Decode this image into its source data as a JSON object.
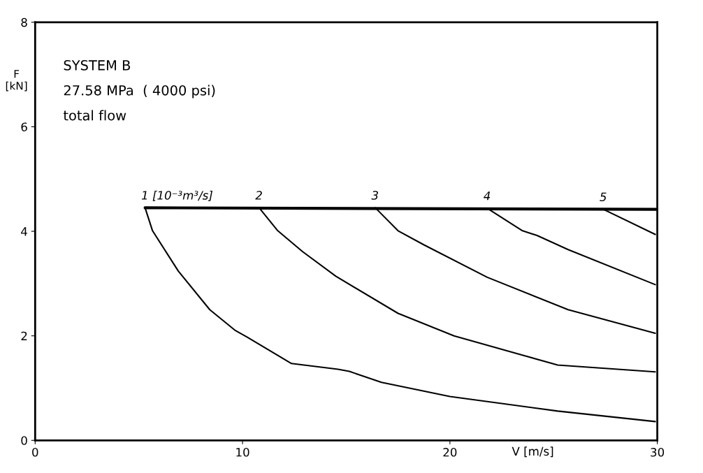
{
  "chart_data": {
    "type": "line",
    "xlabel": "V [m/s]",
    "ylabel": "F\n[kN]",
    "annotations": [
      "SYSTEM B",
      "27.58 MPa  ( 4000 psi)",
      "total flow"
    ],
    "xlim": [
      0,
      30
    ],
    "ylim": [
      0,
      8
    ],
    "xticks": [
      0,
      10,
      20,
      30
    ],
    "yticks": [
      0,
      2,
      4,
      6,
      8
    ],
    "grid": false,
    "legend": false,
    "marker": "none",
    "line_style": "solid",
    "series": [
      {
        "color": "#000000",
        "x": [
          5.3,
          30
        ],
        "values": [
          4.45,
          4.42
        ]
      },
      {
        "name": "1 [10⁻³m³/s]",
        "color": "#000000",
        "x": [
          5.3,
          5.66,
          6.9,
          8.42,
          9.66,
          10.2,
          12.36,
          14.6,
          15.15,
          16.7,
          20,
          25.2,
          29.9
        ],
        "values": [
          4.45,
          4.01,
          3.24,
          2.5,
          2.1,
          1.98,
          1.47,
          1.36,
          1.32,
          1.11,
          0.84,
          0.56,
          0.36
        ]
      },
      {
        "name": "2",
        "color": "#000000",
        "x": [
          10.8,
          11.7,
          12.9,
          14.5,
          17.5,
          20.2,
          25.2,
          29.9
        ],
        "values": [
          4.45,
          4.01,
          3.61,
          3.14,
          2.43,
          2.0,
          1.44,
          1.31
        ]
      },
      {
        "name": "3",
        "color": "#000000",
        "x": [
          16.4,
          17.5,
          18.75,
          21.8,
          25.7,
          29.9
        ],
        "values": [
          4.45,
          4.01,
          3.74,
          3.12,
          2.5,
          2.05
        ]
      },
      {
        "name": "4",
        "color": "#000000",
        "x": [
          21.8,
          23.5,
          24.2,
          25.7,
          29.9
        ],
        "values": [
          4.44,
          4.01,
          3.92,
          3.65,
          2.98
        ]
      },
      {
        "name": "5",
        "color": "#000000",
        "x": [
          27.4,
          29.9
        ],
        "values": [
          4.42,
          3.94
        ]
      }
    ]
  }
}
